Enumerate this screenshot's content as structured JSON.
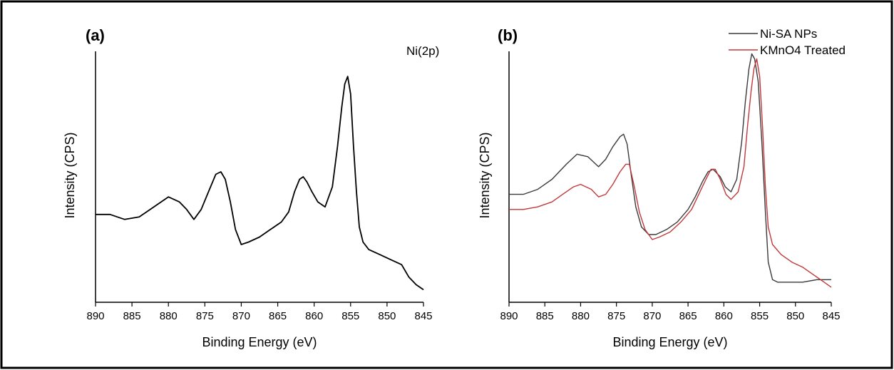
{
  "colors": {
    "frame": "#000000",
    "axis": "#000000",
    "trace_a": "#000000",
    "ni_sa": "#3a3a3a",
    "kmno4": "#c0383a"
  },
  "chart_data": [
    {
      "type": "line",
      "panel_label": "(a)",
      "annotation": "Ni(2p)",
      "xlabel": "Binding Energy (eV)",
      "ylabel": "Intensity (CPS)",
      "x_reversed": true,
      "xlim": [
        890,
        845
      ],
      "xticks": [
        890,
        885,
        880,
        875,
        870,
        865,
        860,
        855,
        850,
        845
      ],
      "y_ticks_shown": false,
      "ylim": [
        0,
        1
      ],
      "grid": false,
      "series": [
        {
          "color": "#000000",
          "points": [
            [
              890,
              0.35
            ],
            [
              888,
              0.35
            ],
            [
              886,
              0.33
            ],
            [
              884,
              0.34
            ],
            [
              882.5,
              0.37
            ],
            [
              881,
              0.4
            ],
            [
              880,
              0.42
            ],
            [
              878.5,
              0.4
            ],
            [
              877.5,
              0.37
            ],
            [
              876.5,
              0.33
            ],
            [
              875.5,
              0.37
            ],
            [
              874.5,
              0.44
            ],
            [
              873.5,
              0.51
            ],
            [
              872.8,
              0.52
            ],
            [
              872.2,
              0.49
            ],
            [
              871.5,
              0.4
            ],
            [
              870.8,
              0.29
            ],
            [
              870,
              0.23
            ],
            [
              869,
              0.24
            ],
            [
              867.5,
              0.26
            ],
            [
              866,
              0.29
            ],
            [
              864.5,
              0.32
            ],
            [
              863.5,
              0.36
            ],
            [
              862.7,
              0.44
            ],
            [
              862,
              0.49
            ],
            [
              861.5,
              0.5
            ],
            [
              861,
              0.48
            ],
            [
              860.3,
              0.44
            ],
            [
              859.5,
              0.4
            ],
            [
              858.5,
              0.38
            ],
            [
              857.5,
              0.46
            ],
            [
              856.8,
              0.62
            ],
            [
              856.2,
              0.78
            ],
            [
              855.8,
              0.87
            ],
            [
              855.4,
              0.9
            ],
            [
              855.0,
              0.83
            ],
            [
              854.6,
              0.62
            ],
            [
              854.2,
              0.44
            ],
            [
              853.8,
              0.3
            ],
            [
              853.3,
              0.24
            ],
            [
              852.5,
              0.21
            ],
            [
              851,
              0.19
            ],
            [
              849.5,
              0.17
            ],
            [
              848,
              0.15
            ],
            [
              847,
              0.1
            ],
            [
              846,
              0.07
            ],
            [
              845,
              0.05
            ]
          ]
        }
      ]
    },
    {
      "type": "line",
      "panel_label": "(b)",
      "xlabel": "Binding Energy (eV)",
      "ylabel": "Intensity (CPS)",
      "x_reversed": true,
      "xlim": [
        890,
        845
      ],
      "xticks": [
        890,
        885,
        880,
        875,
        870,
        865,
        860,
        855,
        850,
        845
      ],
      "y_ticks_shown": false,
      "ylim": [
        0,
        1
      ],
      "grid": false,
      "legend_position": "top-right",
      "series": [
        {
          "name": "Ni-SA NPs",
          "color": "#3a3a3a",
          "points": [
            [
              890,
              0.43
            ],
            [
              888,
              0.43
            ],
            [
              886,
              0.45
            ],
            [
              884,
              0.49
            ],
            [
              882,
              0.55
            ],
            [
              880.5,
              0.59
            ],
            [
              879,
              0.58
            ],
            [
              877.5,
              0.54
            ],
            [
              876.5,
              0.57
            ],
            [
              875.5,
              0.62
            ],
            [
              874.5,
              0.66
            ],
            [
              874,
              0.67
            ],
            [
              873.5,
              0.63
            ],
            [
              873,
              0.52
            ],
            [
              872.3,
              0.38
            ],
            [
              871.5,
              0.3
            ],
            [
              870.5,
              0.27
            ],
            [
              869.5,
              0.27
            ],
            [
              868,
              0.29
            ],
            [
              866.5,
              0.32
            ],
            [
              865,
              0.37
            ],
            [
              864,
              0.42
            ],
            [
              863,
              0.48
            ],
            [
              862.2,
              0.52
            ],
            [
              861.5,
              0.53
            ],
            [
              860.5,
              0.5
            ],
            [
              859.8,
              0.46
            ],
            [
              859,
              0.44
            ],
            [
              858.2,
              0.49
            ],
            [
              857.5,
              0.64
            ],
            [
              857,
              0.8
            ],
            [
              856.5,
              0.93
            ],
            [
              856.1,
              0.99
            ],
            [
              855.7,
              0.97
            ],
            [
              855.2,
              0.88
            ],
            [
              854.7,
              0.64
            ],
            [
              854.2,
              0.36
            ],
            [
              853.8,
              0.16
            ],
            [
              853.2,
              0.09
            ],
            [
              852.5,
              0.08
            ],
            [
              851,
              0.08
            ],
            [
              849,
              0.08
            ],
            [
              847,
              0.09
            ],
            [
              845,
              0.09
            ]
          ]
        },
        {
          "name": "KMnO4 Treated",
          "color": "#c0383a",
          "points": [
            [
              890,
              0.37
            ],
            [
              888,
              0.37
            ],
            [
              886,
              0.38
            ],
            [
              884,
              0.4
            ],
            [
              882.5,
              0.43
            ],
            [
              881,
              0.46
            ],
            [
              880,
              0.47
            ],
            [
              878.5,
              0.45
            ],
            [
              877.5,
              0.42
            ],
            [
              876.5,
              0.43
            ],
            [
              875.5,
              0.47
            ],
            [
              874.5,
              0.52
            ],
            [
              873.7,
              0.55
            ],
            [
              873.2,
              0.55
            ],
            [
              872.5,
              0.46
            ],
            [
              871.8,
              0.36
            ],
            [
              871,
              0.29
            ],
            [
              870,
              0.25
            ],
            [
              869,
              0.26
            ],
            [
              867.5,
              0.28
            ],
            [
              866,
              0.32
            ],
            [
              864.5,
              0.37
            ],
            [
              863.5,
              0.43
            ],
            [
              862.5,
              0.49
            ],
            [
              861.8,
              0.53
            ],
            [
              861.2,
              0.53
            ],
            [
              860.5,
              0.49
            ],
            [
              859.7,
              0.43
            ],
            [
              859,
              0.41
            ],
            [
              858,
              0.44
            ],
            [
              857.2,
              0.54
            ],
            [
              856.7,
              0.7
            ],
            [
              856.2,
              0.84
            ],
            [
              855.8,
              0.93
            ],
            [
              855.4,
              0.97
            ],
            [
              855.0,
              0.9
            ],
            [
              854.6,
              0.7
            ],
            [
              854.2,
              0.46
            ],
            [
              853.8,
              0.3
            ],
            [
              853.2,
              0.23
            ],
            [
              852,
              0.19
            ],
            [
              850.5,
              0.16
            ],
            [
              849,
              0.14
            ],
            [
              847.5,
              0.11
            ],
            [
              846,
              0.08
            ],
            [
              845,
              0.06
            ]
          ]
        }
      ]
    }
  ]
}
